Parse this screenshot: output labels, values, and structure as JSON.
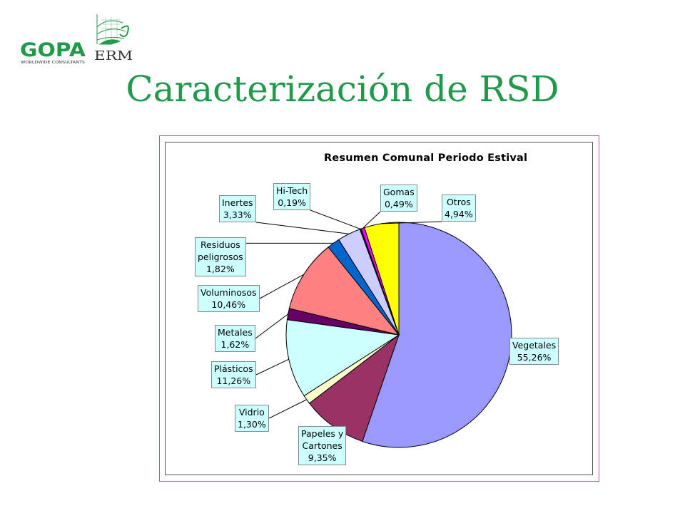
{
  "slide": {
    "title": "Caracterización de RSD"
  },
  "logos": {
    "gopa_text": "GOPA",
    "gopa_sub": "WORLDWIDE CONSULTANTS",
    "erm_text": "ERM"
  },
  "chart_data": {
    "type": "pie",
    "title": "Resumen Comunal Periodo Estival",
    "slices": [
      {
        "label": "Vegetales",
        "value": 55.26,
        "value_label": "55,26%",
        "color": "#9999ff"
      },
      {
        "label": "Papeles y Cartones",
        "value": 9.35,
        "value_label": "9,35%",
        "color": "#993366"
      },
      {
        "label": "Vidrio",
        "value": 1.3,
        "value_label": "1,30%",
        "color": "#ffffcc"
      },
      {
        "label": "Plásticos",
        "value": 11.26,
        "value_label": "11,26%",
        "color": "#ccffff"
      },
      {
        "label": "Metales",
        "value": 1.62,
        "value_label": "1,62%",
        "color": "#660066"
      },
      {
        "label": "Voluminosos",
        "value": 10.46,
        "value_label": "10,46%",
        "color": "#ff8080"
      },
      {
        "label": "Residuos peligrosos",
        "value": 1.82,
        "value_label": "1,82%",
        "color": "#0066cc"
      },
      {
        "label": "Inertes",
        "value": 3.33,
        "value_label": "3,33%",
        "color": "#ccccff"
      },
      {
        "label": "Hi-Tech",
        "value": 0.19,
        "value_label": "0,19%",
        "color": "#000080"
      },
      {
        "label": "Gomas",
        "value": 0.49,
        "value_label": "0,49%",
        "color": "#ff00ff"
      },
      {
        "label": "Otros",
        "value": 4.94,
        "value_label": "4,94%",
        "color": "#ffff00"
      }
    ],
    "label_lines": [
      [
        "Vegetales",
        "55,26%"
      ],
      [
        "Papeles y",
        "Cartones",
        "9,35%"
      ],
      [
        "Vidrio",
        "1,30%"
      ],
      [
        "Plásticos",
        "11,26%"
      ],
      [
        "Metales",
        "1,62%"
      ],
      [
        "Voluminosos",
        "10,46%"
      ],
      [
        "Residuos",
        "peligrosos",
        "1,82%"
      ],
      [
        "Inertes",
        "3,33%"
      ],
      [
        "Hi-Tech",
        "0,19%"
      ],
      [
        "Gomas",
        "0,49%"
      ],
      [
        "Otros",
        "4,94%"
      ]
    ],
    "label_box_color": "#ccffff",
    "frame_color": "#c0509a",
    "start_angle": "12 o'clock",
    "direction": "clockwise"
  }
}
